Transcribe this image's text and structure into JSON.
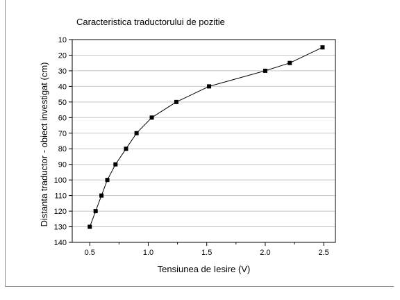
{
  "chart_data": {
    "type": "line",
    "title": "Caracteristica traductorului de pozitie",
    "xlabel": "Tensiunea de Iesire (V)",
    "ylabel": "Distanta traductor - obiect investigat (cm)",
    "xlim": [
      0.35,
      2.6
    ],
    "ylim": [
      140,
      10
    ],
    "y_inverted": true,
    "grid": true,
    "grid_axis": "y",
    "x_ticks": [
      0.5,
      1.0,
      1.5,
      2.0,
      2.5
    ],
    "x_tick_labels": [
      "0.5",
      "1.0",
      "1.5",
      "2.0",
      "2.5"
    ],
    "y_ticks": [
      10,
      20,
      30,
      40,
      50,
      60,
      70,
      80,
      90,
      100,
      110,
      120,
      130,
      140
    ],
    "y_tick_labels": [
      "10",
      "20",
      "30",
      "40",
      "50",
      "60",
      "70",
      "80",
      "90",
      "100",
      "110",
      "120",
      "130",
      "140"
    ],
    "marker": "square",
    "colors": {
      "line": "#000000",
      "marker": "#000000",
      "grid": "#c8c8c8",
      "axis": "#000000"
    },
    "series": [
      {
        "x": [
          0.5,
          0.55,
          0.6,
          0.65,
          0.72,
          0.81,
          0.9,
          1.03,
          1.24,
          1.52,
          2.0,
          2.21,
          2.49
        ],
        "y": [
          130,
          120,
          110,
          100,
          90,
          80,
          70,
          60,
          50,
          40,
          30,
          25,
          15
        ]
      }
    ]
  }
}
